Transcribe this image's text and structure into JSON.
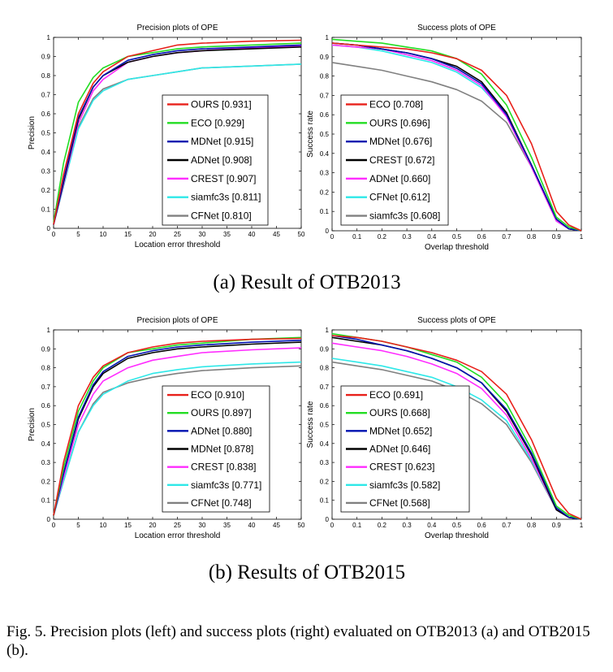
{
  "caption": "Fig. 5.  Precision plots (left) and success plots (right) evaluated on OTB2013 (a) and OTB2015 (b).",
  "colors": {
    "ours": "#e8201a",
    "eco": "#22dd22",
    "mdnet": "#0010b0",
    "adnet": "#000000",
    "crest": "#ff2cff",
    "siamfc3s": "#2ee8e8",
    "cfnet": "#808080"
  },
  "chart_data": [
    {
      "panel": "a-left",
      "type": "line",
      "title": "Precision plots of OPE",
      "xlabel": "Location error threshold",
      "ylabel": "Precision",
      "xlim": [
        0,
        50
      ],
      "ylim": [
        0,
        1
      ],
      "xticks": [
        0,
        5,
        10,
        15,
        20,
        25,
        30,
        35,
        40,
        45,
        50
      ],
      "yticks": [
        0,
        0.1,
        0.2,
        0.3,
        0.4,
        0.5,
        0.6,
        0.7,
        0.8,
        0.9,
        1
      ],
      "x": [
        0,
        2,
        5,
        8,
        10,
        15,
        20,
        25,
        30,
        40,
        50
      ],
      "series": [
        {
          "name": "OURS [0.931]",
          "color": "#e8201a",
          "values": [
            0.02,
            0.28,
            0.6,
            0.76,
            0.82,
            0.9,
            0.93,
            0.96,
            0.97,
            0.98,
            0.985
          ]
        },
        {
          "name": "ECO [0.929]",
          "color": "#22dd22",
          "values": [
            0.03,
            0.34,
            0.66,
            0.79,
            0.84,
            0.9,
            0.92,
            0.94,
            0.95,
            0.96,
            0.97
          ]
        },
        {
          "name": "MDNet [0.915]",
          "color": "#0010b0",
          "values": [
            0.02,
            0.25,
            0.58,
            0.74,
            0.8,
            0.88,
            0.91,
            0.93,
            0.94,
            0.95,
            0.96
          ]
        },
        {
          "name": "ADNet [0.908]",
          "color": "#000000",
          "values": [
            0.02,
            0.24,
            0.57,
            0.74,
            0.8,
            0.87,
            0.9,
            0.92,
            0.93,
            0.94,
            0.95
          ]
        },
        {
          "name": "CREST [0.907]",
          "color": "#ff2cff",
          "values": [
            0.02,
            0.23,
            0.55,
            0.72,
            0.78,
            0.87,
            0.9,
            0.92,
            0.93,
            0.945,
            0.955
          ]
        },
        {
          "name": "siamfc3s [0.811]",
          "color": "#2ee8e8",
          "values": [
            0.02,
            0.22,
            0.52,
            0.67,
            0.72,
            0.78,
            0.8,
            0.82,
            0.84,
            0.85,
            0.86
          ]
        },
        {
          "name": "CFNet [0.810]",
          "color": "#808080",
          "values": [
            0.02,
            0.22,
            0.53,
            0.68,
            0.73,
            0.78,
            0.8,
            0.82,
            0.84,
            0.85,
            0.86
          ]
        }
      ]
    },
    {
      "panel": "a-right",
      "type": "line",
      "title": "Success plots of OPE",
      "xlabel": "Overlap threshold",
      "ylabel": "Success rate",
      "xlim": [
        0,
        1
      ],
      "ylim": [
        0,
        1
      ],
      "xticks": [
        0,
        0.1,
        0.2,
        0.3,
        0.4,
        0.5,
        0.6,
        0.7,
        0.8,
        0.9,
        1
      ],
      "yticks": [
        0,
        0.1,
        0.2,
        0.3,
        0.4,
        0.5,
        0.6,
        0.7,
        0.8,
        0.9,
        1
      ],
      "x": [
        0,
        0.1,
        0.2,
        0.3,
        0.4,
        0.5,
        0.6,
        0.7,
        0.8,
        0.9,
        0.95,
        1
      ],
      "series": [
        {
          "name": "ECO [0.708]",
          "color": "#e8201a",
          "values": [
            0.97,
            0.96,
            0.95,
            0.94,
            0.92,
            0.89,
            0.83,
            0.7,
            0.45,
            0.1,
            0.03,
            0
          ]
        },
        {
          "name": "OURS [0.696]",
          "color": "#22dd22",
          "values": [
            0.99,
            0.98,
            0.97,
            0.95,
            0.93,
            0.89,
            0.81,
            0.65,
            0.38,
            0.07,
            0.02,
            0
          ]
        },
        {
          "name": "MDNet [0.676]",
          "color": "#0010b0",
          "values": [
            0.97,
            0.96,
            0.94,
            0.92,
            0.89,
            0.84,
            0.76,
            0.6,
            0.34,
            0.06,
            0.01,
            0
          ]
        },
        {
          "name": "CREST [0.672]",
          "color": "#000000",
          "values": [
            0.97,
            0.96,
            0.94,
            0.92,
            0.89,
            0.85,
            0.77,
            0.61,
            0.34,
            0.06,
            0.01,
            0
          ]
        },
        {
          "name": "ADNet [0.660]",
          "color": "#ff2cff",
          "values": [
            0.96,
            0.95,
            0.94,
            0.91,
            0.88,
            0.83,
            0.75,
            0.59,
            0.33,
            0.05,
            0.01,
            0
          ]
        },
        {
          "name": "CFNet [0.612]",
          "color": "#2ee8e8",
          "values": [
            0.96,
            0.95,
            0.93,
            0.9,
            0.87,
            0.82,
            0.74,
            0.6,
            0.34,
            0.05,
            0.01,
            0
          ]
        },
        {
          "name": "siamfc3s [0.608]",
          "color": "#808080",
          "values": [
            0.87,
            0.85,
            0.83,
            0.8,
            0.77,
            0.73,
            0.67,
            0.56,
            0.33,
            0.05,
            0.01,
            0
          ]
        }
      ]
    },
    {
      "panel": "b-left",
      "type": "line",
      "title": "Precision plots of OPE",
      "xlabel": "Location error threshold",
      "ylabel": "Precision",
      "xlim": [
        0,
        50
      ],
      "ylim": [
        0,
        1
      ],
      "xticks": [
        0,
        5,
        10,
        15,
        20,
        25,
        30,
        35,
        40,
        45,
        50
      ],
      "yticks": [
        0,
        0.1,
        0.2,
        0.3,
        0.4,
        0.5,
        0.6,
        0.7,
        0.8,
        0.9,
        1
      ],
      "x": [
        0,
        2,
        5,
        8,
        10,
        15,
        20,
        25,
        30,
        40,
        50
      ],
      "series": [
        {
          "name": "ECO [0.910]",
          "color": "#e8201a",
          "values": [
            0.02,
            0.3,
            0.6,
            0.75,
            0.81,
            0.88,
            0.91,
            0.93,
            0.94,
            0.95,
            0.955
          ]
        },
        {
          "name": "OURS [0.897]",
          "color": "#22dd22",
          "values": [
            0.02,
            0.27,
            0.57,
            0.73,
            0.8,
            0.88,
            0.9,
            0.92,
            0.93,
            0.95,
            0.96
          ]
        },
        {
          "name": "ADNet [0.880]",
          "color": "#0010b0",
          "values": [
            0.02,
            0.24,
            0.54,
            0.71,
            0.78,
            0.86,
            0.89,
            0.91,
            0.92,
            0.935,
            0.945
          ]
        },
        {
          "name": "MDNet [0.878]",
          "color": "#000000",
          "values": [
            0.02,
            0.24,
            0.53,
            0.7,
            0.77,
            0.85,
            0.88,
            0.9,
            0.91,
            0.925,
            0.935
          ]
        },
        {
          "name": "CREST [0.838]",
          "color": "#ff2cff",
          "values": [
            0.02,
            0.22,
            0.5,
            0.66,
            0.73,
            0.8,
            0.84,
            0.86,
            0.88,
            0.895,
            0.905
          ]
        },
        {
          "name": "siamfc3s [0.771]",
          "color": "#2ee8e8",
          "values": [
            0.02,
            0.2,
            0.46,
            0.6,
            0.66,
            0.73,
            0.77,
            0.79,
            0.805,
            0.82,
            0.83
          ]
        },
        {
          "name": "CFNet [0.748]",
          "color": "#808080",
          "values": [
            0.02,
            0.2,
            0.46,
            0.61,
            0.67,
            0.72,
            0.75,
            0.77,
            0.785,
            0.8,
            0.81
          ]
        }
      ]
    },
    {
      "panel": "b-right",
      "type": "line",
      "title": "Success plots of OPE",
      "xlabel": "Overlap threshold",
      "ylabel": "Success rate",
      "xlim": [
        0,
        1
      ],
      "ylim": [
        0,
        1
      ],
      "xticks": [
        0,
        0.1,
        0.2,
        0.3,
        0.4,
        0.5,
        0.6,
        0.7,
        0.8,
        0.9,
        1
      ],
      "yticks": [
        0,
        0.1,
        0.2,
        0.3,
        0.4,
        0.5,
        0.6,
        0.7,
        0.8,
        0.9,
        1
      ],
      "x": [
        0,
        0.1,
        0.2,
        0.3,
        0.4,
        0.5,
        0.6,
        0.7,
        0.8,
        0.9,
        0.95,
        1
      ],
      "series": [
        {
          "name": "ECO [0.691]",
          "color": "#e8201a",
          "values": [
            0.97,
            0.96,
            0.94,
            0.91,
            0.88,
            0.84,
            0.78,
            0.66,
            0.42,
            0.11,
            0.03,
            0
          ]
        },
        {
          "name": "OURS [0.668]",
          "color": "#22dd22",
          "values": [
            0.98,
            0.96,
            0.94,
            0.91,
            0.87,
            0.83,
            0.75,
            0.61,
            0.37,
            0.07,
            0.02,
            0
          ]
        },
        {
          "name": "MDNet [0.652]",
          "color": "#0010b0",
          "values": [
            0.97,
            0.95,
            0.92,
            0.89,
            0.85,
            0.8,
            0.72,
            0.58,
            0.35,
            0.06,
            0.01,
            0
          ]
        },
        {
          "name": "ADNet [0.646]",
          "color": "#000000",
          "values": [
            0.96,
            0.94,
            0.92,
            0.89,
            0.85,
            0.8,
            0.72,
            0.57,
            0.34,
            0.05,
            0.01,
            0
          ]
        },
        {
          "name": "CREST [0.623]",
          "color": "#ff2cff",
          "values": [
            0.93,
            0.91,
            0.89,
            0.86,
            0.82,
            0.77,
            0.69,
            0.55,
            0.32,
            0.05,
            0.01,
            0
          ]
        },
        {
          "name": "siamfc3s [0.582]",
          "color": "#2ee8e8",
          "values": [
            0.85,
            0.83,
            0.81,
            0.78,
            0.75,
            0.7,
            0.63,
            0.52,
            0.31,
            0.05,
            0.01,
            0
          ]
        },
        {
          "name": "CFNet [0.568]",
          "color": "#808080",
          "values": [
            0.83,
            0.81,
            0.79,
            0.76,
            0.73,
            0.68,
            0.61,
            0.5,
            0.3,
            0.05,
            0.01,
            0
          ]
        }
      ]
    }
  ],
  "subfigures": [
    {
      "label": "(a) Result of OTB2013"
    },
    {
      "label": "(b) Results of OTB2015"
    }
  ]
}
